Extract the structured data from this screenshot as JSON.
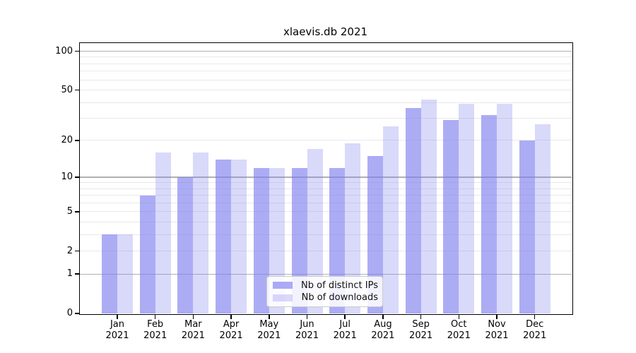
{
  "title": "xlaevis.db 2021",
  "colors": {
    "ips_fill": "rgba(128,128,240,0.65)",
    "downloads_fill": "rgba(128,128,240,0.30)",
    "grid_major": "#b0b0b0",
    "grid_minor": "#e9e9e9",
    "axis": "#000000",
    "background": "#ffffff"
  },
  "legend": {
    "items": [
      {
        "key": "ips",
        "label": "Nb of distinct IPs"
      },
      {
        "key": "downloads",
        "label": "Nb of downloads"
      }
    ]
  },
  "axes": {
    "y_tick_labels": [
      0,
      1,
      2,
      5,
      10,
      20,
      50,
      100
    ],
    "y_major_gridlines": [
      1,
      10,
      100
    ],
    "y_minor_gridlines": [
      2,
      3,
      4,
      5,
      6,
      7,
      8,
      9,
      20,
      30,
      40,
      50,
      60,
      70,
      80,
      90
    ]
  },
  "chart_data": {
    "type": "bar",
    "title": "xlaevis.db 2021",
    "categories": [
      "Jan 2021",
      "Feb 2021",
      "Mar 2021",
      "Apr 2021",
      "May 2021",
      "Jun 2021",
      "Jul 2021",
      "Aug 2021",
      "Sep 2021",
      "Oct 2021",
      "Nov 2021",
      "Dec 2021"
    ],
    "series": [
      {
        "key": "ips",
        "name": "Nb of distinct IPs",
        "values": [
          3,
          7,
          10,
          14,
          12,
          12,
          12,
          15,
          36,
          29,
          32,
          20
        ]
      },
      {
        "key": "downloads",
        "name": "Nb of downloads",
        "values": [
          3,
          16,
          16,
          14,
          12,
          17,
          19,
          26,
          42,
          39,
          39,
          27
        ]
      }
    ],
    "yscale": "log1p",
    "ylim": [
      0,
      117
    ],
    "y_ticks": [
      0,
      1,
      2,
      5,
      10,
      20,
      50,
      100
    ],
    "grid": "on",
    "legend_position": "lower center"
  }
}
